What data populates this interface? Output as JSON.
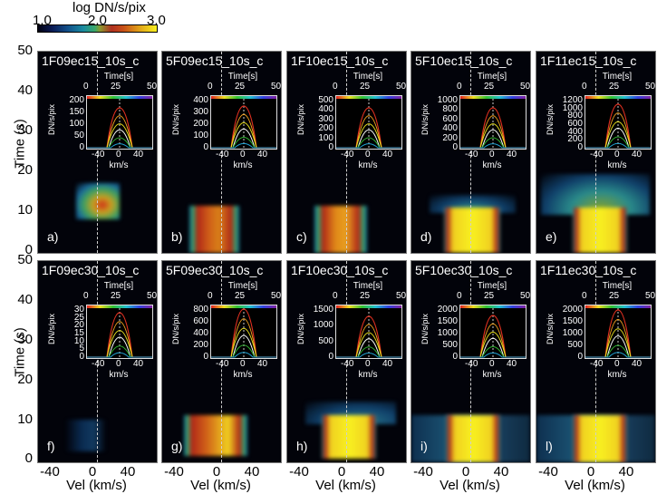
{
  "colorbar": {
    "title": "log DN/s/pix",
    "ticks": [
      "1.0",
      "2.0",
      "3.0"
    ],
    "range": [
      1.0,
      3.0
    ],
    "colormap": [
      "#000010",
      "#12508a",
      "#3aa86a",
      "#b03020",
      "#e0a018",
      "#f8f020"
    ]
  },
  "axes": {
    "ylabel": "Time (s)",
    "xlabel": "Vel (km/s)",
    "yticks": [
      "0",
      "10",
      "20",
      "30",
      "40",
      "50"
    ],
    "xticks": [
      "-40",
      "0",
      "40"
    ],
    "inset_time_label": "Time[s]",
    "inset_time_ticks": [
      "0",
      "25",
      "50"
    ],
    "inset_ylabel": "DN/s/pix",
    "inset_xlabel": "km/s",
    "inset_xticks": [
      "-40",
      "0",
      "40"
    ]
  },
  "panels": [
    {
      "id": "a)",
      "title": "1F09ec15_10s_c",
      "inset_yticks": [
        "0",
        "50",
        "100",
        "150",
        "200"
      ],
      "peak": 170
    },
    {
      "id": "b)",
      "title": "5F09ec15_10s_c",
      "inset_yticks": [
        "0",
        "100",
        "200",
        "300",
        "400"
      ],
      "peak": 350
    },
    {
      "id": "c)",
      "title": "1F10ec15_10s_c",
      "inset_yticks": [
        "0",
        "100",
        "200",
        "300",
        "400",
        "500"
      ],
      "peak": 420
    },
    {
      "id": "d)",
      "title": "5F10ec15_10s_c",
      "inset_yticks": [
        "0",
        "200",
        "400",
        "600",
        "800",
        "1000"
      ],
      "peak": 850
    },
    {
      "id": "e)",
      "title": "1F11ec15_10s_c",
      "inset_yticks": [
        "0",
        "200",
        "400",
        "600",
        "800",
        "1000",
        "1200"
      ],
      "peak": 1100
    },
    {
      "id": "f)",
      "title": "1F09ec30_10s_c",
      "inset_yticks": [
        "0",
        "5",
        "10",
        "15",
        "20",
        "25",
        "30"
      ],
      "peak": 28
    },
    {
      "id": "g)",
      "title": "5F09ec30_10s_c",
      "inset_yticks": [
        "0",
        "200",
        "400",
        "600",
        "800"
      ],
      "peak": 820
    },
    {
      "id": "h)",
      "title": "1F10ec30_10s_c",
      "inset_yticks": [
        "0",
        "500",
        "1000",
        "1500"
      ],
      "peak": 1300
    },
    {
      "id": "i)",
      "title": "5F10ec30_10s_c",
      "inset_yticks": [
        "0",
        "500",
        "1000",
        "1500",
        "2000"
      ],
      "peak": 1750
    },
    {
      "id": "l)",
      "title": "1F11ec30_10s_c",
      "inset_yticks": [
        "0",
        "500",
        "1000",
        "1500",
        "2000"
      ],
      "peak": 2000
    }
  ],
  "chart_data": {
    "type": "heatmap",
    "title": "",
    "xlabel": "Vel (km/s)",
    "ylabel": "Time (s)",
    "xlim": [
      -65,
      65
    ],
    "ylim": [
      0,
      50
    ],
    "colorbar_label": "log DN/s/pix",
    "colorbar_range": [
      1.0,
      3.0
    ],
    "grid": false,
    "layout": "2 rows x 5 columns",
    "panels": [
      {
        "label": "a)",
        "name": "1F09ec15_10s_c",
        "emission_time_range_s": [
          9,
          18
        ],
        "emission_vel_range_kms": [
          -15,
          20
        ],
        "max_log": 2.3,
        "inset_ylim": [
          0,
          200
        ],
        "inset_peak_DN": 170
      },
      {
        "label": "b)",
        "name": "5F09ec15_10s_c",
        "emission_time_range_s": [
          0,
          10
        ],
        "emission_vel_range_kms": [
          -20,
          20
        ],
        "max_log": 2.6,
        "inset_ylim": [
          0,
          400
        ],
        "inset_peak_DN": 350
      },
      {
        "label": "c)",
        "name": "1F10ec15_10s_c",
        "emission_time_range_s": [
          0,
          10
        ],
        "emission_vel_range_kms": [
          -20,
          20
        ],
        "max_log": 2.7,
        "inset_ylim": [
          0,
          500
        ],
        "inset_peak_DN": 420
      },
      {
        "label": "d)",
        "name": "5F10ec15_10s_c",
        "emission_time_range_s": [
          0,
          10
        ],
        "emission_vel_range_kms": [
          -20,
          25
        ],
        "max_log": 3.0,
        "inset_ylim": [
          0,
          1000
        ],
        "inset_peak_DN": 850
      },
      {
        "label": "e)",
        "name": "1F11ec15_10s_c",
        "emission_time_range_s": [
          0,
          12
        ],
        "emission_vel_range_kms": [
          -20,
          30
        ],
        "max_log": 3.0,
        "inset_ylim": [
          0,
          1200
        ],
        "inset_peak_DN": 1100
      },
      {
        "label": "f)",
        "name": "1F09ec30_10s_c",
        "emission_time_range_s": [
          3,
          10
        ],
        "emission_vel_range_kms": [
          -15,
          20
        ],
        "max_log": 1.3,
        "inset_ylim": [
          0,
          30
        ],
        "inset_peak_DN": 28
      },
      {
        "label": "g)",
        "name": "5F09ec30_10s_c",
        "emission_time_range_s": [
          1,
          10
        ],
        "emission_vel_range_kms": [
          -25,
          25
        ],
        "max_log": 2.9,
        "inset_ylim": [
          0,
          800
        ],
        "inset_peak_DN": 820
      },
      {
        "label": "h)",
        "name": "1F10ec30_10s_c",
        "emission_time_range_s": [
          0,
          10
        ],
        "emission_vel_range_kms": [
          -22,
          25
        ],
        "max_log": 3.0,
        "inset_ylim": [
          0,
          1500
        ],
        "inset_peak_DN": 1300
      },
      {
        "label": "i)",
        "name": "5F10ec30_10s_c",
        "emission_time_range_s": [
          0,
          10
        ],
        "emission_vel_range_kms": [
          -20,
          25
        ],
        "max_log": 3.0,
        "inset_ylim": [
          0,
          2000
        ],
        "inset_peak_DN": 1750
      },
      {
        "label": "l)",
        "name": "1F11ec30_10s_c",
        "emission_time_range_s": [
          0,
          10
        ],
        "emission_vel_range_kms": [
          -20,
          25
        ],
        "max_log": 3.0,
        "inset_ylim": [
          0,
          2000
        ],
        "inset_peak_DN": 2000
      }
    ],
    "inset": {
      "type": "line",
      "xlabel": "km/s",
      "ylabel": "DN/s/pix",
      "xticks": [
        -40,
        0,
        40
      ],
      "color_axis_label": "Time[s]",
      "color_axis_ticks": [
        0,
        25,
        50
      ]
    }
  }
}
